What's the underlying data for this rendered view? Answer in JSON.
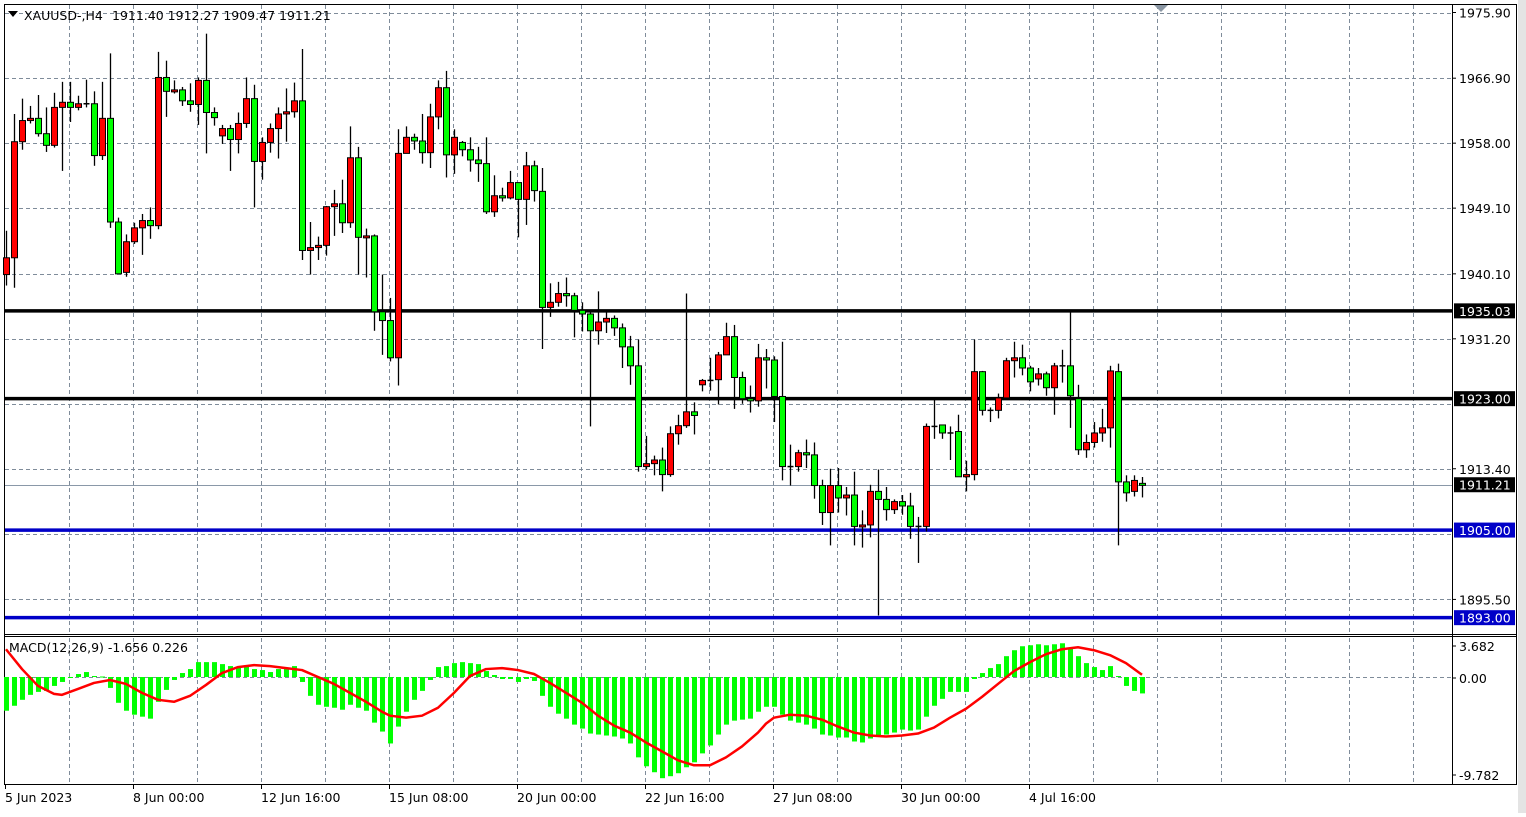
{
  "header": {
    "menu_icon": "triangle-down-icon",
    "symbol_timeframe": "XAUUSD-,H4",
    "ohlc": "1911.40 1912.27 1909.47 1911.21"
  },
  "price_axis": {
    "labels": [
      "1975.90",
      "1966.90",
      "1958.00",
      "1949.10",
      "1940.10",
      "1931.20",
      "1913.40",
      "1895.50"
    ],
    "current_price": "1911.21"
  },
  "horizontal_lines": [
    {
      "price": 1935.03,
      "label": "1935.03",
      "color": "#000000"
    },
    {
      "price": 1923.0,
      "label": "1923.00",
      "color": "#000000"
    },
    {
      "price": 1905.0,
      "label": "1905.00",
      "color": "#0000c8"
    },
    {
      "price": 1893.0,
      "label": "1893.00",
      "color": "#0000c8"
    }
  ],
  "time_axis": {
    "labels": [
      "5 Jun 2023",
      "8 Jun 00:00",
      "12 Jun 16:00",
      "15 Jun 08:00",
      "20 Jun 00:00",
      "22 Jun 16:00",
      "27 Jun 08:00",
      "30 Jun 00:00",
      "4 Jul 16:00"
    ]
  },
  "colors": {
    "bull": "#ff0000",
    "bear": "#00ff00",
    "macd_hist": "#00ff00",
    "signal": "#ff0000",
    "support_line": "#0000c8",
    "resistance_line": "#000000"
  },
  "macd": {
    "title": "MACD(12,26,9) -1.656 0.226",
    "axis_labels": [
      "3.682",
      "0.00",
      "-9.782"
    ],
    "ylim": [
      -9.782,
      3.682
    ]
  },
  "chart_data": {
    "type": "candlestick",
    "symbol": "XAUUSD-",
    "timeframe": "H4",
    "ylim": [
      1893.0,
      1975.9
    ],
    "ohlc": [
      [
        1940.0,
        1946.0,
        1938.5,
        1942.3
      ],
      [
        1942.3,
        1962.0,
        1938.2,
        1958.2
      ],
      [
        1958.2,
        1964.1,
        1957.1,
        1961.1
      ],
      [
        1961.1,
        1963.1,
        1960.7,
        1961.4
      ],
      [
        1961.4,
        1964.6,
        1958.9,
        1959.3
      ],
      [
        1959.3,
        1962.9,
        1956.8,
        1957.7
      ],
      [
        1957.7,
        1964.9,
        1957.4,
        1962.9
      ],
      [
        1962.9,
        1966.4,
        1954.2,
        1963.6
      ],
      [
        1963.6,
        1966.4,
        1960.9,
        1962.9
      ],
      [
        1962.9,
        1964.5,
        1962.5,
        1963.4
      ],
      [
        1963.4,
        1966.7,
        1962.9,
        1963.4
      ],
      [
        1963.4,
        1965.1,
        1954.9,
        1956.3
      ],
      [
        1956.3,
        1966.4,
        1955.7,
        1961.4
      ],
      [
        1961.4,
        1970.3,
        1946.4,
        1947.2
      ],
      [
        1947.2,
        1947.8,
        1940.1,
        1940.1
      ],
      [
        1940.3,
        1945.5,
        1939.7,
        1944.5
      ],
      [
        1944.5,
        1947.1,
        1944.2,
        1946.4
      ],
      [
        1946.4,
        1948.3,
        1942.7,
        1947.4
      ],
      [
        1947.4,
        1949.2,
        1944.9,
        1946.7
      ],
      [
        1946.7,
        1970.5,
        1946.2,
        1967.0
      ],
      [
        1967.0,
        1969.3,
        1961.6,
        1965.1
      ],
      [
        1965.1,
        1966.6,
        1964.8,
        1965.3
      ],
      [
        1965.3,
        1965.7,
        1963.1,
        1963.8
      ],
      [
        1963.8,
        1966.2,
        1962.3,
        1963.3
      ],
      [
        1963.3,
        1967.0,
        1960.5,
        1966.6
      ],
      [
        1966.6,
        1973.0,
        1956.6,
        1962.2
      ],
      [
        1962.2,
        1962.9,
        1960.4,
        1961.5
      ],
      [
        1959.0,
        1960.5,
        1957.9,
        1960.0
      ],
      [
        1960.0,
        1960.5,
        1954.2,
        1958.5
      ],
      [
        1958.5,
        1962.2,
        1956.6,
        1960.7
      ],
      [
        1960.7,
        1967.0,
        1960.1,
        1964.1
      ],
      [
        1964.1,
        1966.0,
        1949.2,
        1955.5
      ],
      [
        1955.5,
        1958.8,
        1953.0,
        1958.1
      ],
      [
        1958.1,
        1960.7,
        1956.7,
        1960.0
      ],
      [
        1960.0,
        1962.9,
        1955.9,
        1962.0
      ],
      [
        1962.0,
        1965.5,
        1958.2,
        1962.3
      ],
      [
        1962.3,
        1966.3,
        1961.5,
        1963.8
      ],
      [
        1963.8,
        1970.9,
        1942.0,
        1943.3
      ],
      [
        1943.3,
        1947.2,
        1940.0,
        1943.7
      ],
      [
        1943.7,
        1945.2,
        1942.0,
        1944.0
      ],
      [
        1944.0,
        1949.4,
        1942.6,
        1949.3
      ],
      [
        1949.3,
        1951.6,
        1945.3,
        1949.7
      ],
      [
        1949.7,
        1953.0,
        1945.7,
        1947.1
      ],
      [
        1947.1,
        1960.3,
        1946.4,
        1956.0
      ],
      [
        1956.0,
        1957.5,
        1940.0,
        1945.1
      ],
      [
        1945.1,
        1946.3,
        1939.6,
        1945.3
      ],
      [
        1945.3,
        1945.5,
        1932.3,
        1934.9
      ],
      [
        1934.9,
        1940.0,
        1929.0,
        1933.7
      ],
      [
        1933.7,
        1936.8,
        1928.1,
        1928.6
      ],
      [
        1928.6,
        1959.9,
        1924.8,
        1956.6
      ],
      [
        1956.6,
        1960.3,
        1956.6,
        1958.8
      ],
      [
        1958.8,
        1959.3,
        1957.1,
        1958.3
      ],
      [
        1958.3,
        1962.0,
        1955.2,
        1956.7
      ],
      [
        1956.7,
        1963.4,
        1954.6,
        1961.6
      ],
      [
        1961.6,
        1966.6,
        1959.9,
        1965.6
      ],
      [
        1965.6,
        1967.9,
        1953.3,
        1956.4
      ],
      [
        1956.4,
        1959.9,
        1953.8,
        1958.8
      ],
      [
        1958.1,
        1958.3,
        1956.2,
        1957.1
      ],
      [
        1957.1,
        1958.8,
        1954.1,
        1955.7
      ],
      [
        1955.7,
        1957.5,
        1952.7,
        1955.2
      ],
      [
        1955.2,
        1958.8,
        1948.3,
        1948.6
      ],
      [
        1948.6,
        1953.6,
        1947.9,
        1950.8
      ],
      [
        1950.8,
        1951.9,
        1950.0,
        1950.5
      ],
      [
        1950.5,
        1954.2,
        1950.3,
        1952.6
      ],
      [
        1952.6,
        1952.6,
        1945.1,
        1950.3
      ],
      [
        1950.3,
        1956.8,
        1946.8,
        1954.9
      ],
      [
        1954.9,
        1955.6,
        1950.0,
        1951.5
      ],
      [
        1951.4,
        1954.6,
        1929.8,
        1935.5
      ],
      [
        1935.5,
        1938.8,
        1934.2,
        1936.2
      ],
      [
        1936.2,
        1939.0,
        1935.6,
        1937.4
      ],
      [
        1937.4,
        1939.6,
        1935.6,
        1937.1
      ],
      [
        1937.1,
        1937.5,
        1931.4,
        1935.1
      ],
      [
        1935.1,
        1936.2,
        1932.2,
        1934.6
      ],
      [
        1934.6,
        1935.1,
        1919.2,
        1932.3
      ],
      [
        1932.3,
        1937.7,
        1930.4,
        1933.5
      ],
      [
        1933.5,
        1935.1,
        1932.0,
        1934.0
      ],
      [
        1934.0,
        1934.4,
        1931.6,
        1932.7
      ],
      [
        1932.7,
        1933.3,
        1927.2,
        1930.1
      ],
      [
        1930.1,
        1931.6,
        1924.9,
        1927.5
      ],
      [
        1927.5,
        1931.1,
        1913.0,
        1913.7
      ],
      [
        1913.7,
        1917.9,
        1913.3,
        1914.1
      ],
      [
        1914.1,
        1915.2,
        1912.5,
        1914.6
      ],
      [
        1914.6,
        1916.3,
        1910.3,
        1912.6
      ],
      [
        1912.6,
        1919.2,
        1912.3,
        1918.2
      ],
      [
        1918.2,
        1920.8,
        1916.7,
        1919.3
      ],
      [
        1919.3,
        1937.4,
        1919.0,
        1921.2
      ],
      [
        1921.2,
        1922.5,
        1918.1,
        1920.7
      ],
      [
        1924.9,
        1925.7,
        1924.0,
        1925.5
      ],
      [
        1925.5,
        1928.6,
        1924.1,
        1925.5
      ],
      [
        1925.6,
        1929.4,
        1922.2,
        1929.0
      ],
      [
        1929.0,
        1933.4,
        1929.0,
        1931.5
      ],
      [
        1931.5,
        1933.1,
        1921.6,
        1925.9
      ],
      [
        1925.9,
        1926.7,
        1922.3,
        1923.0
      ],
      [
        1923.0,
        1924.8,
        1921.1,
        1922.7
      ],
      [
        1922.7,
        1930.5,
        1921.9,
        1928.6
      ],
      [
        1928.6,
        1929.8,
        1924.4,
        1928.3
      ],
      [
        1928.3,
        1928.8,
        1919.8,
        1923.3
      ],
      [
        1923.3,
        1930.8,
        1911.8,
        1913.7
      ],
      [
        1913.7,
        1916.7,
        1911.1,
        1913.7
      ],
      [
        1913.7,
        1916.0,
        1913.0,
        1915.6
      ],
      [
        1915.6,
        1917.4,
        1913.5,
        1915.3
      ],
      [
        1915.3,
        1917.0,
        1909.3,
        1911.1
      ],
      [
        1911.1,
        1911.9,
        1905.7,
        1907.4
      ],
      [
        1907.4,
        1913.4,
        1902.9,
        1911.1
      ],
      [
        1911.1,
        1913.5,
        1907.4,
        1909.4
      ],
      [
        1909.4,
        1910.9,
        1907.0,
        1909.8
      ],
      [
        1909.8,
        1913.0,
        1902.9,
        1905.5
      ],
      [
        1905.5,
        1907.7,
        1902.6,
        1905.7
      ],
      [
        1905.7,
        1911.2,
        1904.0,
        1910.3
      ],
      [
        1910.3,
        1913.3,
        1893.3,
        1909.2
      ],
      [
        1909.2,
        1910.9,
        1906.3,
        1907.8
      ],
      [
        1907.8,
        1909.2,
        1907.2,
        1908.9
      ],
      [
        1908.9,
        1909.8,
        1907.1,
        1908.3
      ],
      [
        1908.3,
        1910.1,
        1903.8,
        1905.5
      ],
      [
        1905.5,
        1906.8,
        1900.5,
        1905.5
      ],
      [
        1905.5,
        1919.6,
        1904.8,
        1919.2
      ],
      [
        1919.2,
        1922.9,
        1917.5,
        1919.2
      ],
      [
        1919.4,
        1919.4,
        1917.5,
        1918.3
      ],
      [
        1918.3,
        1919.2,
        1914.6,
        1918.3
      ],
      [
        1918.5,
        1920.8,
        1912.3,
        1912.3
      ],
      [
        1912.3,
        1914.5,
        1910.3,
        1912.6
      ],
      [
        1912.6,
        1931.1,
        1911.8,
        1926.7
      ],
      [
        1926.7,
        1926.8,
        1920.7,
        1921.4
      ],
      [
        1921.4,
        1921.8,
        1919.8,
        1921.4
      ],
      [
        1921.4,
        1923.7,
        1920.3,
        1923.1
      ],
      [
        1923.1,
        1928.6,
        1922.9,
        1928.2
      ],
      [
        1928.2,
        1930.8,
        1925.9,
        1928.6
      ],
      [
        1928.6,
        1930.4,
        1926.2,
        1927.2
      ],
      [
        1927.2,
        1927.5,
        1924.0,
        1925.3
      ],
      [
        1925.7,
        1927.2,
        1924.8,
        1926.4
      ],
      [
        1926.4,
        1926.7,
        1923.4,
        1924.5
      ],
      [
        1924.5,
        1927.9,
        1920.8,
        1927.5
      ],
      [
        1927.5,
        1929.7,
        1925.2,
        1927.5
      ],
      [
        1927.5,
        1935.1,
        1919.0,
        1923.4
      ],
      [
        1923.0,
        1924.9,
        1915.3,
        1916.0
      ],
      [
        1916.0,
        1918.1,
        1914.9,
        1917.0
      ],
      [
        1917.0,
        1919.8,
        1916.3,
        1918.3
      ],
      [
        1918.3,
        1921.6,
        1917.1,
        1919.0
      ],
      [
        1919.0,
        1927.5,
        1916.3,
        1926.8
      ],
      [
        1926.7,
        1927.8,
        1902.9,
        1911.6
      ],
      [
        1911.6,
        1912.5,
        1908.9,
        1910.1
      ],
      [
        1910.3,
        1912.5,
        1909.6,
        1911.8
      ],
      [
        1911.4,
        1912.27,
        1909.47,
        1911.21
      ]
    ],
    "macd_histogram": [
      -3.4,
      -2.9,
      -2.3,
      -1.8,
      -1.5,
      -1.4,
      -0.9,
      -0.5,
      0.0,
      0.3,
      0.5,
      0.1,
      0.05,
      -1.1,
      -2.6,
      -3.4,
      -3.8,
      -4.0,
      -4.2,
      -2.5,
      -1.3,
      -0.3,
      0.4,
      0.8,
      1.5,
      1.5,
      1.5,
      1.3,
      1.1,
      1.0,
      1.1,
      0.8,
      0.7,
      0.5,
      0.8,
      0.9,
      1.1,
      -0.5,
      -1.9,
      -2.8,
      -3.0,
      -3.1,
      -3.3,
      -2.8,
      -3.1,
      -3.4,
      -4.6,
      -5.5,
      -6.7,
      -5.0,
      -3.5,
      -2.3,
      -1.4,
      -0.3,
      1.0,
      1.1,
      1.4,
      1.5,
      1.4,
      1.3,
      0.6,
      0.2,
      -0.2,
      -0.2,
      -0.5,
      -0.2,
      -0.4,
      -1.9,
      -3.0,
      -3.7,
      -4.2,
      -4.8,
      -5.2,
      -5.7,
      -5.8,
      -5.9,
      -6.0,
      -6.2,
      -6.7,
      -8.1,
      -9.0,
      -9.6,
      -10.2,
      -10.0,
      -9.7,
      -9.1,
      -8.6,
      -7.7,
      -6.9,
      -5.8,
      -4.8,
      -4.4,
      -4.3,
      -4.2,
      -3.5,
      -3.0,
      -3.0,
      -3.8,
      -4.4,
      -4.6,
      -4.8,
      -5.2,
      -5.8,
      -5.9,
      -6.1,
      -6.1,
      -6.5,
      -6.6,
      -6.2,
      -5.9,
      -5.8,
      -5.6,
      -5.3,
      -5.4,
      -5.3,
      -4.0,
      -2.9,
      -2.2,
      -1.5,
      -1.5,
      -1.5,
      -0.2,
      0.4,
      0.9,
      1.3,
      2.1,
      2.7,
      3.1,
      3.2,
      3.3,
      3.2,
      3.3,
      3.4,
      2.9,
      2.1,
      1.4,
      1.0,
      0.7,
      1.1,
      0.1,
      -0.9,
      -1.4,
      -1.656
    ],
    "macd_signal_by_bar": [
      [
        1,
        2.8
      ],
      [
        3,
        0.8
      ],
      [
        5,
        -0.9
      ],
      [
        7,
        -1.7
      ],
      [
        8,
        -1.8
      ],
      [
        10,
        -1.2
      ],
      [
        12,
        -0.6
      ],
      [
        14,
        -0.3
      ],
      [
        16,
        -0.7
      ],
      [
        18,
        -1.6
      ],
      [
        20,
        -2.3
      ],
      [
        22,
        -2.5
      ],
      [
        24,
        -1.9
      ],
      [
        26,
        -0.8
      ],
      [
        28,
        0.4
      ],
      [
        30,
        1.0
      ],
      [
        32,
        1.2
      ],
      [
        34,
        1.1
      ],
      [
        36,
        0.9
      ],
      [
        38,
        0.7
      ],
      [
        40,
        0.0
      ],
      [
        42,
        -0.7
      ],
      [
        44,
        -1.6
      ],
      [
        46,
        -2.5
      ],
      [
        48,
        -3.5
      ],
      [
        49,
        -3.9
      ],
      [
        51,
        -4.1
      ],
      [
        53,
        -3.9
      ],
      [
        55,
        -3.1
      ],
      [
        57,
        -1.6
      ],
      [
        59,
        0.1
      ],
      [
        61,
        0.8
      ],
      [
        63,
        0.9
      ],
      [
        65,
        0.7
      ],
      [
        67,
        0.3
      ],
      [
        69,
        -0.6
      ],
      [
        71,
        -1.6
      ],
      [
        73,
        -2.6
      ],
      [
        75,
        -3.9
      ],
      [
        77,
        -4.9
      ],
      [
        79,
        -5.6
      ],
      [
        81,
        -6.6
      ],
      [
        83,
        -7.5
      ],
      [
        85,
        -8.4
      ],
      [
        87,
        -8.9
      ],
      [
        89,
        -8.9
      ],
      [
        91,
        -8.1
      ],
      [
        93,
        -7.0
      ],
      [
        95,
        -5.6
      ],
      [
        96,
        -4.7
      ],
      [
        97,
        -4.1
      ],
      [
        99,
        -3.8
      ],
      [
        101,
        -3.9
      ],
      [
        103,
        -4.3
      ],
      [
        105,
        -5.0
      ],
      [
        107,
        -5.6
      ],
      [
        109,
        -5.9
      ],
      [
        111,
        -6.0
      ],
      [
        113,
        -5.9
      ],
      [
        115,
        -5.7
      ],
      [
        117,
        -5.1
      ],
      [
        119,
        -4.1
      ],
      [
        121,
        -3.2
      ],
      [
        123,
        -2.0
      ],
      [
        125,
        -0.7
      ],
      [
        127,
        0.6
      ],
      [
        129,
        1.5
      ],
      [
        131,
        2.3
      ],
      [
        133,
        2.8
      ],
      [
        135,
        3.0
      ],
      [
        137,
        2.7
      ],
      [
        139,
        2.2
      ],
      [
        141,
        1.4
      ],
      [
        143,
        0.226
      ]
    ]
  }
}
